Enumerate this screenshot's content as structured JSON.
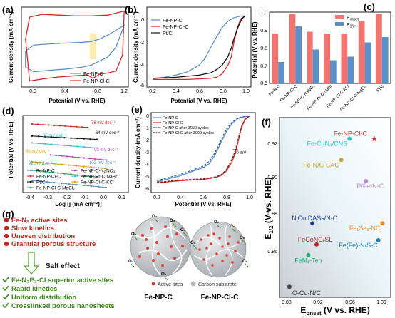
{
  "panels": {
    "a": {
      "letter": "(a)",
      "xlabel": "Potential (V vs. RHE)",
      "ylabel": "Current density (mA cm⁻²)",
      "xticks": [
        "0.0",
        "0.4",
        "0.8",
        "1.2"
      ],
      "legend": [
        "Fe-NP-C",
        "Fe-NP-Cl-C"
      ],
      "chart_data": {
        "type": "line",
        "xlim": [
          -0.05,
          1.25
        ],
        "ylim": [
          -1.0,
          1.0
        ],
        "highlight_x": [
          0.78,
          0.86
        ],
        "series": [
          {
            "name": "Fe-NP-C",
            "color": "#5b8fc7",
            "x": [
              0.0,
              0.1,
              0.3,
              0.5,
              0.7,
              0.8,
              0.9,
              1.0,
              1.1,
              1.2,
              1.1,
              1.0,
              0.9,
              0.8,
              0.7,
              0.5,
              0.3,
              0.1,
              0.0
            ],
            "y": [
              -0.1,
              0.05,
              0.08,
              0.1,
              0.12,
              0.14,
              0.2,
              0.3,
              0.42,
              0.55,
              0.0,
              -0.25,
              -0.35,
              -0.45,
              -0.5,
              -0.55,
              -0.58,
              -0.62,
              -0.5
            ]
          },
          {
            "name": "Fe-NP-Cl-C",
            "color": "#d62728",
            "x": [
              0.0,
              0.05,
              0.2,
              0.4,
              0.6,
              0.8,
              1.0,
              1.1,
              1.2,
              1.18,
              1.1,
              1.0,
              0.9,
              0.82,
              0.75,
              0.6,
              0.4,
              0.2,
              0.05,
              0.0
            ],
            "y": [
              0.2,
              0.75,
              0.82,
              0.8,
              0.78,
              0.78,
              0.8,
              0.85,
              0.9,
              -0.2,
              -0.6,
              -0.65,
              -0.68,
              -0.78,
              -0.7,
              -0.72,
              -0.75,
              -0.8,
              -0.85,
              0.2
            ]
          }
        ]
      }
    },
    "b": {
      "letter": "(b)",
      "xlabel": "Potential (V vs. RHE)",
      "ylabel": "Current density (mA cm⁻²)",
      "xticks": [
        "0.2",
        "0.4",
        "0.6",
        "0.8",
        "1.0"
      ],
      "yticks": [
        "0",
        "-2",
        "-4",
        "-6"
      ],
      "legend": [
        "Fe-NP-C",
        "Fe-NP-Cl-C",
        "Pt/C"
      ],
      "chart_data": {
        "type": "line",
        "xlim": [
          0.15,
          1.05
        ],
        "ylim": [
          -6.6,
          0.8
        ],
        "series": [
          {
            "name": "Fe-NP-C",
            "color": "#5b8fc7",
            "x": [
              0.2,
              0.3,
              0.4,
              0.5,
              0.6,
              0.65,
              0.7,
              0.75,
              0.8,
              0.85,
              0.9,
              0.95,
              1.0
            ],
            "y": [
              -5.8,
              -5.7,
              -5.5,
              -5.2,
              -4.6,
              -4.0,
              -3.0,
              -2.0,
              -1.1,
              -0.5,
              -0.2,
              -0.05,
              0.0
            ]
          },
          {
            "name": "Fe-NP-Cl-C",
            "color": "#d62728",
            "x": [
              0.2,
              0.3,
              0.4,
              0.5,
              0.6,
              0.7,
              0.75,
              0.8,
              0.85,
              0.88,
              0.9,
              0.93,
              0.96,
              1.0
            ],
            "y": [
              -5.9,
              -5.9,
              -5.9,
              -5.9,
              -5.85,
              -5.8,
              -5.7,
              -5.4,
              -4.6,
              -3.8,
              -2.6,
              -1.2,
              -0.3,
              0.0
            ]
          },
          {
            "name": "Pt/C",
            "color": "#111111",
            "x": [
              0.2,
              0.3,
              0.4,
              0.5,
              0.6,
              0.7,
              0.75,
              0.8,
              0.85,
              0.88,
              0.9,
              0.94,
              0.97,
              1.0
            ],
            "y": [
              -5.8,
              -5.75,
              -5.7,
              -5.6,
              -5.5,
              -5.3,
              -5.0,
              -4.6,
              -3.8,
              -3.0,
              -2.2,
              -1.0,
              -0.3,
              0.0
            ]
          }
        ]
      }
    },
    "c": {
      "letter": "(c)",
      "ylabel": "Potential (V vs. RHE)",
      "yticks": [
        "1.0",
        "0.9",
        "0.8",
        "0.7",
        "0.6"
      ],
      "legend": [
        "E",
        "E"
      ],
      "legend_subs": [
        "onset",
        "1/2"
      ],
      "chart_data": {
        "type": "bar",
        "ylim": [
          0.6,
          1.0
        ],
        "categories": [
          "Fe-N-C",
          "Fe-NP-Cl-C",
          "Fe-NP-C-NaNO₃",
          "Fe-NP-Br-C-NaBr",
          "Fe-NP-Cl-C-KCl",
          "Fe-NP-Cl-C-MgCl₂",
          "Pt/C"
        ],
        "series": [
          {
            "name": "E_onset",
            "color": "#f07470",
            "values": [
              0.88,
              0.99,
              0.89,
              0.88,
              0.88,
              0.95,
              0.99
            ]
          },
          {
            "name": "E_1/2",
            "color": "#5b8fc7",
            "values": [
              0.72,
              0.92,
              0.79,
              0.73,
              0.75,
              0.83,
              0.86
            ]
          }
        ]
      }
    },
    "d": {
      "letter": "(d)",
      "xlabel": "Log [j (mA cm⁻²)]",
      "ylabel": "Potential (V vs. RHE)",
      "xticks": [
        "-0.4",
        "-0.3",
        "-0.2",
        "-0.1",
        "0.0",
        "0.1"
      ],
      "legend": [
        "Fe-NP-C",
        "Fe-NP-C-NaNO₃",
        "Fe-NP-Cl-C",
        "Fe-NP-Br-C-NaBr",
        "Pt/C",
        "Fe-NP-Cl-C-KCl",
        "Fe-NP-Cl-C-MgCl₂"
      ],
      "slopes": [
        "76 mV dec⁻¹",
        "64 mV dec⁻¹",
        "95 mV dec⁻¹",
        "93 mV dec⁻¹",
        "90 mV dec⁻¹",
        "92 mV dec⁻¹",
        "102 mV dec⁻¹"
      ],
      "chart_data": {
        "type": "scatter",
        "xlim": [
          -0.45,
          0.12
        ],
        "ylim": [
          0.55,
          1.0
        ],
        "series": [
          {
            "name": "Fe-NP-C",
            "color": "#5b8fc7",
            "x": [
              -0.4,
              0.0
            ],
            "y": [
              0.62,
              0.58
            ]
          },
          {
            "name": "Fe-NP-Cl-C",
            "color": "#d62728",
            "x": [
              -0.4,
              -0.1
            ],
            "y": [
              0.95,
              0.93
            ]
          },
          {
            "name": "Pt/C",
            "color": "#111111",
            "x": [
              -0.4,
              -0.05
            ],
            "y": [
              0.88,
              0.86
            ]
          },
          {
            "name": "Fe-NP-C-NaNO₃",
            "color": "#b845b8",
            "x": [
              -0.3,
              0.0
            ],
            "y": [
              0.77,
              0.74
            ]
          },
          {
            "name": "Fe-NP-Br-C-NaBr",
            "color": "#2ec4d0",
            "x": [
              -0.4,
              -0.05
            ],
            "y": [
              0.84,
              0.81
            ]
          },
          {
            "name": "Fe-NP-Cl-C-KCl",
            "color": "#e0a010",
            "x": [
              -0.4,
              0.0
            ],
            "y": [
              0.73,
              0.69
            ]
          },
          {
            "name": "Fe-NP-Cl-C-MgCl₂",
            "color": "#27a86a",
            "x": [
              -0.4,
              -0.05
            ],
            "y": [
              0.68,
              0.64
            ]
          }
        ]
      }
    },
    "e": {
      "letter": "(e)",
      "xlabel": "Potential (V vs. RHE)",
      "ylabel": "Current density (mA cm⁻²)",
      "xticks": [
        "0.2",
        "0.4",
        "0.6",
        "0.8",
        "1.0"
      ],
      "yticks": [
        "0",
        "-1",
        "-2",
        "-3",
        "-4",
        "-5",
        "-6"
      ],
      "legend": [
        "Fe-NP-C",
        "Fe-NP-Cl-C",
        "Fe-NP-C after 3000 cycles",
        "Fe-NP-Cl-C after 3000 cycles"
      ],
      "annotation": "10 mV",
      "chart_data": {
        "type": "line",
        "xlim": [
          0.15,
          1.05
        ],
        "ylim": [
          -6.4,
          0.3
        ],
        "series": [
          {
            "name": "Fe-NP-C",
            "color": "#5b8fc7",
            "dash": false,
            "x": [
              0.2,
              0.4,
              0.6,
              0.65,
              0.7,
              0.75,
              0.8,
              0.85,
              0.9,
              0.95,
              1.0
            ],
            "y": [
              -5.5,
              -5.0,
              -4.3,
              -4.0,
              -3.3,
              -2.3,
              -1.3,
              -0.6,
              -0.2,
              -0.05,
              0.0
            ]
          },
          {
            "name": "Fe-NP-Cl-C",
            "color": "#d62728",
            "dash": false,
            "x": [
              0.2,
              0.4,
              0.6,
              0.7,
              0.75,
              0.8,
              0.85,
              0.88,
              0.9,
              0.93,
              0.96,
              1.0
            ],
            "y": [
              -5.6,
              -5.4,
              -5.3,
              -5.15,
              -5.0,
              -4.6,
              -3.8,
              -3.0,
              -2.2,
              -1.0,
              -0.3,
              0.0
            ]
          },
          {
            "name": "Fe-NP-C after 3000 cycles",
            "color": "#2b5ea8",
            "dash": true,
            "x": [
              0.2,
              0.4,
              0.6,
              0.65,
              0.7,
              0.75,
              0.8,
              0.85,
              0.9,
              0.95,
              1.0
            ],
            "y": [
              -5.4,
              -4.9,
              -4.2,
              -3.8,
              -3.1,
              -2.1,
              -1.1,
              -0.5,
              -0.15,
              -0.03,
              0.0
            ]
          },
          {
            "name": "Fe-NP-Cl-C after 3000 cycles",
            "color": "#8b1a1a",
            "dash": true,
            "x": [
              0.2,
              0.4,
              0.6,
              0.7,
              0.75,
              0.8,
              0.85,
              0.88,
              0.9,
              0.93,
              0.96,
              1.0
            ],
            "y": [
              -5.55,
              -5.35,
              -5.25,
              -5.1,
              -4.95,
              -4.5,
              -3.6,
              -2.8,
              -2.0,
              -0.9,
              -0.25,
              0.0
            ]
          }
        ]
      }
    },
    "f": {
      "letter": "(f)",
      "xlabel": "E",
      "xlabel_sub": "onset",
      "xlabel_rest": " (V vs. RHE)",
      "ylabel": "E",
      "ylabel_sub": "1/2",
      "ylabel_rest": " (V vs. RHE)",
      "xticks": [
        "0.88",
        "0.92",
        "0.96",
        "1.00"
      ],
      "yticks": [
        "0.92",
        "0.90",
        "0.88",
        "0.86"
      ],
      "chart_data": {
        "type": "scatter",
        "xlim": [
          0.875,
          1.01
        ],
        "ylim": [
          0.845,
          0.93
        ],
        "points": [
          {
            "label": "Fe-NP-Cl-C",
            "x": 0.99,
            "y": 0.92,
            "color": "#d62728",
            "marker": "star"
          },
          {
            "label": "Fe-Cl₁N₄/CNS",
            "x": 0.96,
            "y": 0.92,
            "color": "#2ec4d0",
            "marker": "circle"
          },
          {
            "label": "Fe-N/C-SAC",
            "x": 0.95,
            "y": 0.91,
            "color": "#c9a227",
            "marker": "circle"
          },
          {
            "label": "P/Fe-N-C",
            "x": 0.98,
            "y": 0.9,
            "color": "#c58ae0",
            "marker": "circle"
          },
          {
            "label": "NiCo DASs/N-C",
            "x": 0.915,
            "y": 0.88,
            "color": "#1f3a93",
            "marker": "circle"
          },
          {
            "label": "Fe₁Se₁-NC",
            "x": 1.0,
            "y": 0.88,
            "color": "#f08a24",
            "marker": "circle"
          },
          {
            "label": "FeCoNC/SL",
            "x": 0.92,
            "y": 0.87,
            "color": "#b03030",
            "marker": "circle"
          },
          {
            "label": "Fe(Fe)-N/S-C",
            "x": 0.995,
            "y": 0.872,
            "color": "#1f78b4",
            "marker": "circle"
          },
          {
            "label": "FeN₄-Ten",
            "x": 0.91,
            "y": 0.865,
            "color": "#27a86a",
            "marker": "circle"
          },
          {
            "label": "O-Co-N/C",
            "x": 0.887,
            "y": 0.85,
            "color": "#444444",
            "marker": "circle"
          }
        ]
      }
    },
    "g": {
      "letter": "(g)",
      "problems": [
        "Fe-Nₓ active sites",
        "Slow kinetics",
        "Uneven distribution",
        "Granular porous structure"
      ],
      "salt_label": "Salt effect",
      "benefits": [
        "Fe-N₂P₂-Cl superior active sites",
        "Rapid kinetics",
        "Uniform distribution",
        "Crosslinked porous nanosheets"
      ],
      "o2_label": "O₂",
      "legend_active": "Active sites",
      "legend_carbon": "Carbon substrate",
      "label_left": "Fe-NP-C",
      "label_right": "Fe-NP-Cl-C"
    }
  }
}
